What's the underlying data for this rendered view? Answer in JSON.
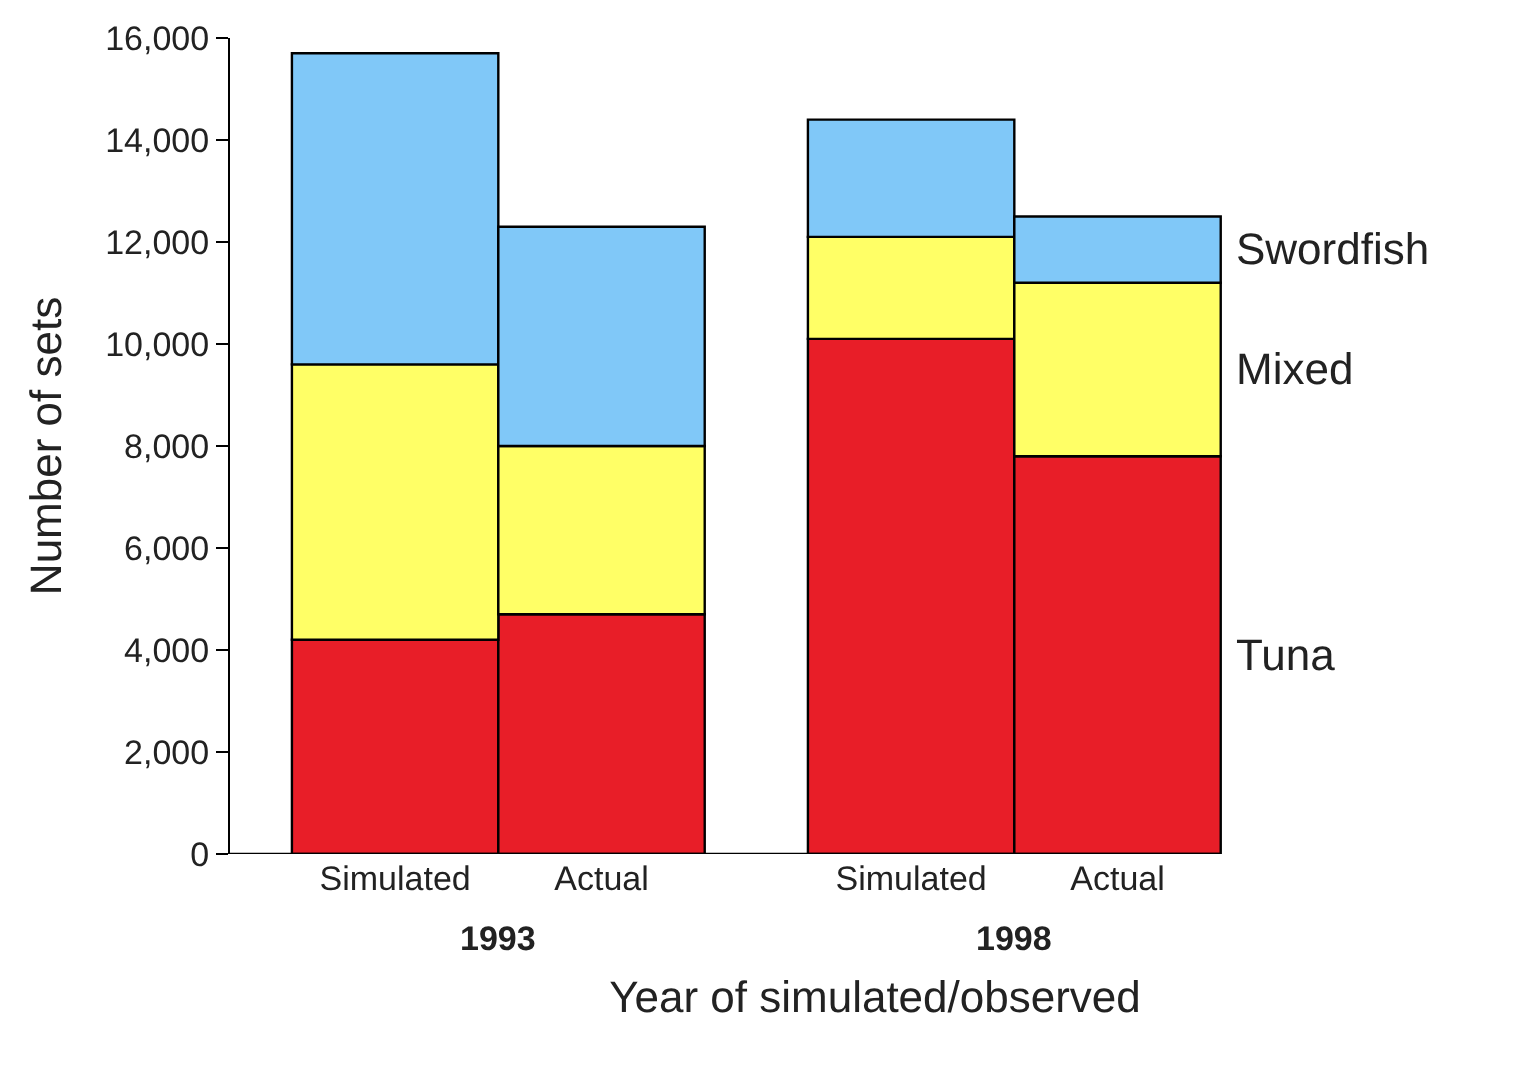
{
  "chart_data": {
    "type": "bar",
    "stacked": true,
    "xlabel": "Year of simulated/observed",
    "ylabel": "Number of sets",
    "categories": [
      "Simulated",
      "Actual",
      "Simulated",
      "Actual"
    ],
    "series": [
      {
        "name": "Tuna",
        "color": "#e81e28",
        "values": [
          4200,
          4700,
          10100,
          7800
        ]
      },
      {
        "name": "Mixed",
        "color": "#ffff66",
        "values": [
          5400,
          3300,
          2000,
          3400
        ]
      },
      {
        "name": "Swordfish",
        "color": "#80c8f8",
        "values": [
          6100,
          4300,
          2300,
          1300
        ]
      }
    ],
    "annotations": [
      "1993",
      "1998"
    ],
    "ylim": [
      0,
      16000
    ],
    "yticks": [
      0,
      {
        "value": 2000,
        "label": "2,000"
      },
      {
        "value": 4000,
        "label": "4,000"
      },
      {
        "value": 6000,
        "label": "6,000"
      },
      {
        "value": 8000,
        "label": "8,000"
      },
      {
        "value": 10000,
        "label": "10,000"
      },
      {
        "value": 12000,
        "label": "12,000"
      },
      {
        "value": 14000,
        "label": "14,000"
      },
      {
        "value": 16000,
        "label": "16,000"
      }
    ],
    "legend": false
  }
}
